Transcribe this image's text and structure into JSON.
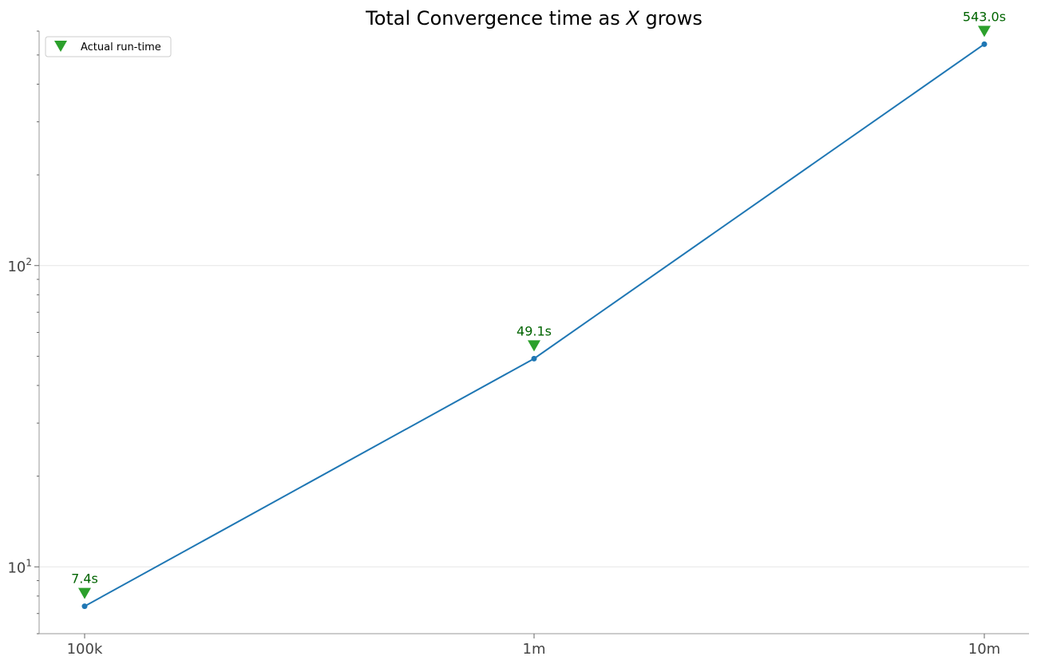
{
  "chart_data": {
    "type": "line",
    "title_prefix": "Total Convergence time as ",
    "title_var": "X",
    "title_suffix": " grows",
    "xlabel": "",
    "ylabel": "",
    "y_scale": "log",
    "ylim": [
      6,
      600
    ],
    "categories": [
      "100k",
      "1m",
      "10m"
    ],
    "series": [
      {
        "name": "",
        "values": [
          7.4,
          49.1,
          543.0
        ],
        "color": "#1f77b4",
        "marker": "circle"
      },
      {
        "name": "Actual run-time",
        "marker": "triangle-down",
        "color": "#2ca02c",
        "values": [
          7.4,
          49.1,
          543.0
        ]
      }
    ],
    "data_labels": [
      "7.4s",
      "49.1s",
      "543.0s"
    ],
    "data_label_color": "#006400",
    "y_major_ticks": [
      {
        "value": 10,
        "base": "10",
        "exp": "1"
      },
      {
        "value": 100,
        "base": "10",
        "exp": "2"
      }
    ],
    "y_minor_ticks": [
      6,
      7,
      8,
      9,
      20,
      30,
      40,
      50,
      60,
      70,
      80,
      90,
      200,
      300,
      400,
      500,
      600
    ],
    "grid": "horizontal-major",
    "legend_position": "upper-left"
  }
}
